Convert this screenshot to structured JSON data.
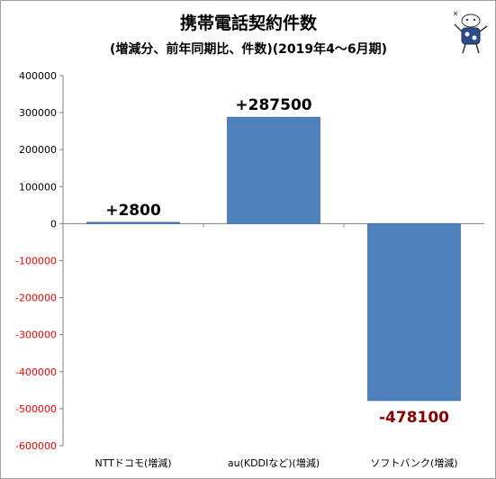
{
  "chart_data": {
    "type": "bar",
    "title": "携帯電話契約件数",
    "subtitle": "(増減分、前年同期比、件数)(2019年4～6月期)",
    "categories": [
      "NTTドコモ(増減)",
      "au(KDDIなど)(増減)",
      "ソフトバンク(増減)"
    ],
    "values": [
      2800,
      287500,
      -478100
    ],
    "data_labels": [
      "+2800",
      "+287500",
      "-478100"
    ],
    "yticks": [
      "400000",
      "300000",
      "200000",
      "100000",
      "0",
      "-100000",
      "-200000",
      "-300000",
      "-400000",
      "-500000",
      "-600000"
    ],
    "ylim": [
      -600000,
      400000
    ],
    "grid": false,
    "legend": "none",
    "colors": {
      "bar": "#4f81bd",
      "bar_edge": "#3e6ea5",
      "positive_label": "#000000",
      "negative_label": "#8b0000",
      "positive_tick": "#000000",
      "negative_tick": "#ff0000",
      "axis": "#808080"
    }
  }
}
